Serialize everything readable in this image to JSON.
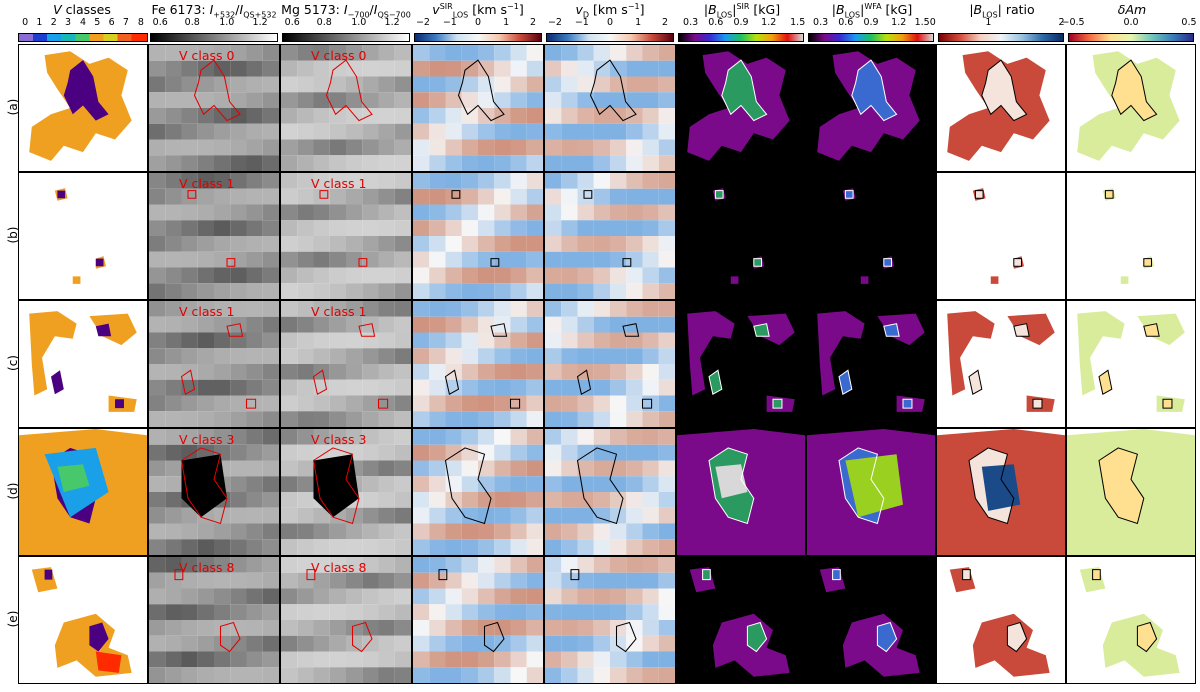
{
  "columns": [
    {
      "title": "V classes",
      "ticks": [
        "0",
        "1",
        "2",
        "3",
        "4",
        "5",
        "6",
        "7",
        "8"
      ]
    },
    {
      "title": "Fe 6173: I+532/IQS+532",
      "ticks": [
        "0.6",
        "0.8",
        "1.0",
        "1.2"
      ]
    },
    {
      "title": "Mg 5173: I−700/IQS−700",
      "ticks": [
        "0.6",
        "0.8",
        "1.0",
        "1.2"
      ]
    },
    {
      "title": "vLOS SIR [km s−1]",
      "ticks": [
        "−2",
        "−1",
        "0",
        "1",
        "2"
      ]
    },
    {
      "title": "vD [km s−1]",
      "ticks": [
        "−2",
        "−1",
        "0",
        "1",
        "2"
      ]
    },
    {
      "title": "|BLOS|SIR [kG]",
      "ticks": [
        "0.3",
        "0.6",
        "0.9",
        "1.2",
        "1.5"
      ]
    },
    {
      "title": "|BLOS|WFA [kG]",
      "ticks": [
        "0.3",
        "0.6",
        "0.9",
        "1.2",
        "1.50"
      ]
    },
    {
      "title": "|BLOS| ratio",
      "ticks": [
        "1",
        "2"
      ]
    },
    {
      "title": "δAm",
      "ticks": [
        "−0.5",
        "0.0",
        "0.5"
      ]
    }
  ],
  "rows": [
    {
      "label": "(a)",
      "vclass": "V class 0"
    },
    {
      "label": "(b)",
      "vclass": "V class 1"
    },
    {
      "label": "(c)",
      "vclass": "V class 1"
    },
    {
      "label": "(d)",
      "vclass": "V class 3"
    },
    {
      "label": "(e)",
      "vclass": "V class 8"
    }
  ],
  "colors": {
    "vclass_palette": [
      "#8a6cd6",
      "#1c3fd0",
      "#1aa0e8",
      "#19b8b8",
      "#47c86a",
      "#f0a020",
      "#d8d020",
      "#f06020",
      "#ff2a00"
    ],
    "contour_red": "#e00000",
    "contour_black": "#000000",
    "contour_white": "#ffffff"
  }
}
